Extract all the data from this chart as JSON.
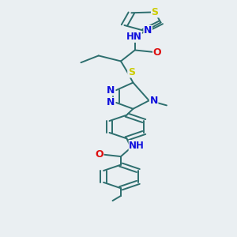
{
  "bg_color": "#eaeff2",
  "bond_color": "#2d6e6e",
  "bond_width": 1.4,
  "atom_colors": {
    "N": "#1010dd",
    "O": "#dd1010",
    "S": "#cccc00",
    "C": "#2d6e6e"
  },
  "font_size": 8.5,
  "fig_size": [
    3.0,
    3.0
  ],
  "dpi": 100,
  "xlim": [
    0,
    10
  ],
  "ylim": [
    0,
    17
  ]
}
